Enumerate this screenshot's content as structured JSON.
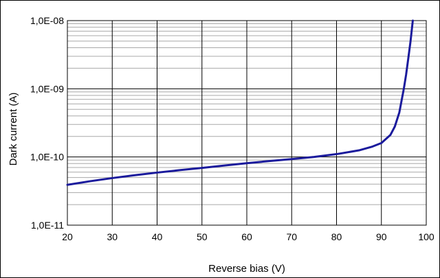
{
  "chart_data": {
    "type": "line",
    "title": "",
    "xlabel": "Reverse bias (V)",
    "ylabel": "Dark current  (A)",
    "x_scale": "linear",
    "y_scale": "log",
    "xlim": [
      20,
      100
    ],
    "ylim": [
      1e-11,
      1e-08
    ],
    "x_ticks": [
      20,
      30,
      40,
      50,
      60,
      70,
      80,
      90,
      100
    ],
    "x_tick_labels": [
      "20",
      "30",
      "40",
      "50",
      "60",
      "70",
      "80",
      "90",
      "100"
    ],
    "y_ticks": [
      1e-11,
      1e-10,
      1e-09,
      1e-08
    ],
    "y_tick_labels": [
      "1,0E-11",
      "1,0E-10",
      "1,0E-09",
      "1,0E-08"
    ],
    "grid": {
      "x_major": true,
      "y_major": true,
      "y_minor": true
    },
    "legend": "none",
    "series": [
      {
        "color": "#1a1a9c",
        "x": [
          20,
          25,
          30,
          35,
          40,
          45,
          50,
          55,
          60,
          65,
          70,
          75,
          80,
          85,
          88,
          90,
          92,
          93,
          94,
          95,
          95.5,
          96,
          96.5,
          97
        ],
        "y": [
          3.9e-11,
          4.4e-11,
          4.9e-11,
          5.4e-11,
          5.9e-11,
          6.4e-11,
          6.9e-11,
          7.5e-11,
          8.1e-11,
          8.7e-11,
          9.3e-11,
          1e-10,
          1.1e-10,
          1.25e-10,
          1.42e-10,
          1.6e-10,
          2.1e-10,
          2.8e-10,
          4.5e-10,
          1e-09,
          1.6e-09,
          2.8e-09,
          5e-09,
          1e-08
        ]
      }
    ]
  }
}
